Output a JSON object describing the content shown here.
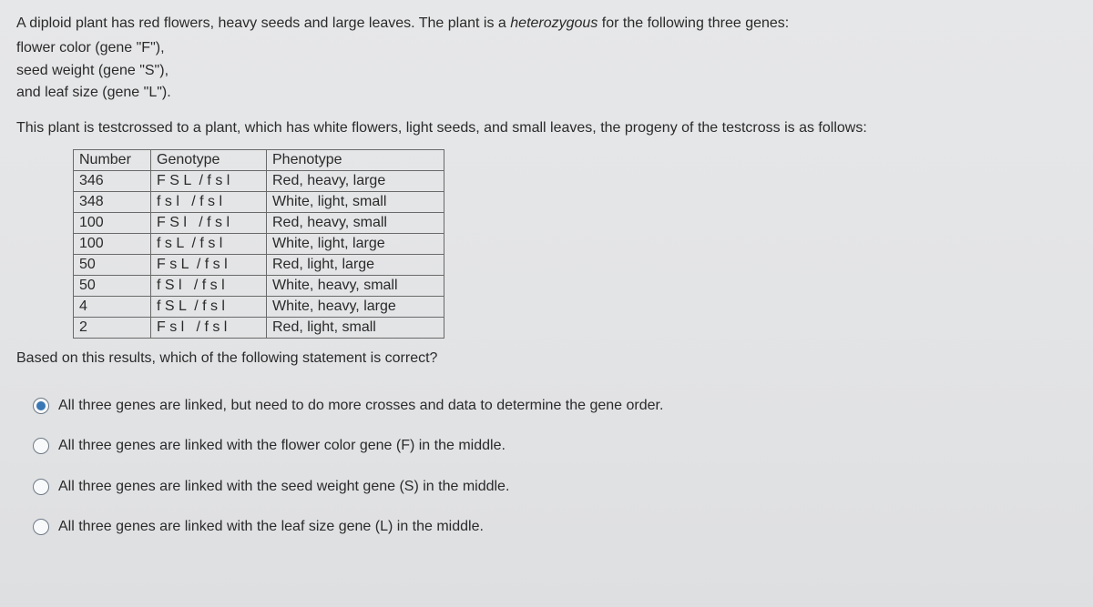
{
  "intro": {
    "l1a": "A diploid plant has red flowers, heavy seeds and large leaves. The plant is a ",
    "l1b": "heterozygous",
    "l1c": " for the following three genes:",
    "l2": "flower color (gene \"F\"),",
    "l3": "seed weight (gene \"S\"),",
    "l4": "and leaf size (gene \"L\")."
  },
  "testcross": "This plant is testcrossed to a plant, which has white flowers, light seeds, and small leaves, the progeny of the testcross is as follows:",
  "table": {
    "header": {
      "c0": "Number",
      "c1": "Genotype",
      "c2": "Phenotype"
    },
    "rows": [
      {
        "c0": "346",
        "c1": "F S L  / f s l",
        "c2": "Red, heavy, large"
      },
      {
        "c0": "348",
        "c1": "f s l   / f s l",
        "c2": "White, light, small"
      },
      {
        "c0": "100",
        "c1": "F S l   / f s l",
        "c2": "Red, heavy, small"
      },
      {
        "c0": "100",
        "c1": "f s L  / f s l",
        "c2": "White, light, large"
      },
      {
        "c0": "50",
        "c1": "F s L  / f s l",
        "c2": "Red, light, large"
      },
      {
        "c0": "50",
        "c1": "f S l   / f s l",
        "c2": "White, heavy, small"
      },
      {
        "c0": "4",
        "c1": "f S L  / f s l",
        "c2": "White, heavy, large"
      },
      {
        "c0": "2",
        "c1": "F s l   / f s l",
        "c2": "Red, light, small"
      }
    ]
  },
  "followq": "Based on this results, which of the following statement is correct?",
  "options": [
    {
      "label": "All three genes are linked, but need to do more crosses and data to determine the gene order.",
      "selected": true
    },
    {
      "label": "All three genes are linked with the flower color gene (F) in the middle.",
      "selected": false
    },
    {
      "label": "All three genes are linked with the seed weight gene (S) in the middle.",
      "selected": false
    },
    {
      "label": "All three genes are linked with the leaf size gene (L) in the middle.",
      "selected": false
    }
  ]
}
